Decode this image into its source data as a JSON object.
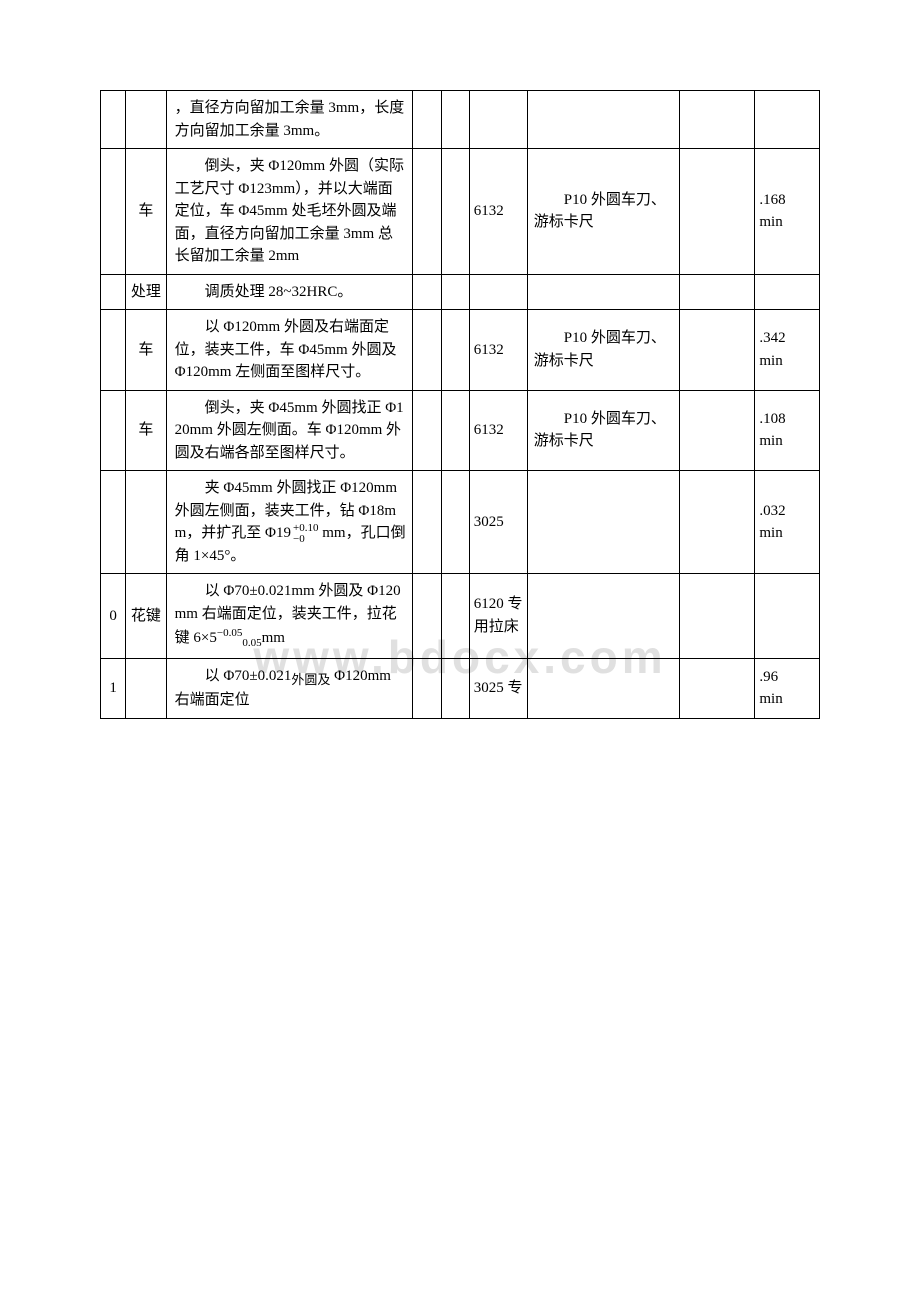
{
  "watermark": "www.bdocx.com",
  "rows": [
    {
      "c0": "",
      "c1": "",
      "c2_indent": "",
      "c2": "，直径方向留加工余量 3mm，长度方向留加工余量 3mm。",
      "c3": "",
      "c4": "",
      "c5": "",
      "c6": "",
      "c7": "",
      "c8": ""
    },
    {
      "c0": "",
      "c1": "车",
      "c2_indent": "　　",
      "c2": "倒头，夹 Φ120mm 外圆（实际工艺尺寸 Φ123mm），并以大端面定位，车 Φ45mm 处毛坯外圆及端面，直径方向留加工余量 3mm 总长留加工余量 2mm",
      "c3": "",
      "c4": "",
      "c5": "6132",
      "c6": "　　P10 外圆车刀、游标卡尺",
      "c7": "",
      "c8": ".168min"
    },
    {
      "c0": "",
      "c1": "处理",
      "c2_indent": "　　",
      "c2": "调质处理 28~32HRC。",
      "c3": "",
      "c4": "",
      "c5": "",
      "c6": "",
      "c7": "",
      "c8": ""
    },
    {
      "c0": "",
      "c1": "车",
      "c2_indent": "　　",
      "c2": "以 Φ120mm 外圆及右端面定位，装夹工件，车 Φ45mm 外圆及 Φ120mm 左侧面至图样尺寸。",
      "c3": "",
      "c4": "",
      "c5": "6132",
      "c6": "　　P10 外圆车刀、游标卡尺",
      "c7": "",
      "c8": ".342min"
    },
    {
      "c0": "",
      "c1": "车",
      "c2_indent": "　　",
      "c2": "倒头，夹 Φ45mm 外圆找正 Φ120mm 外圆左侧面。车 Φ120mm 外圆及右端各部至图样尺寸。",
      "c3": "",
      "c4": "",
      "c5": "6132",
      "c6": "　　P10 外圆车刀、游标卡尺",
      "c7": "",
      "c8": ".108min"
    },
    {
      "c0": "",
      "c1": "",
      "c2_indent": "　　",
      "c2_html": "夹 Φ45mm 外圆找正 Φ120mm 外圆左侧面，装夹工件，钻 Φ18mm，并扩孔至 Φ19<span class='fraction'><span class='top'>+0.10</span><span class='bot'>−0</span></span> mm，孔口倒角 1×45°。",
      "c3": "",
      "c4": "",
      "c5": "3025",
      "c6": "",
      "c7": "",
      "c8": ".032min"
    },
    {
      "c0": "0",
      "c1": "花键",
      "c2_indent": "　　",
      "c2_html": "以 Φ70±0.021mm 外圆及 Φ120mm 右端面定位，装夹工件，拉花键 6×5<span class='math-super'>−0.05</span><span class='math-sub'>0.05</span>mm",
      "c3": "",
      "c4": "",
      "c5": "6120 专用拉床",
      "c6": "",
      "c7": "",
      "c8": ""
    },
    {
      "c0": "1",
      "c1": "",
      "c2_indent": "　　",
      "c2_html": "以 Φ70±0.021<sub style='font-size:13px'>外圆及</sub> Φ120mm 右端面定位",
      "c3": "",
      "c4": "",
      "c5": "3025 专",
      "c6": "",
      "c7": "",
      "c8": ".96min"
    }
  ]
}
